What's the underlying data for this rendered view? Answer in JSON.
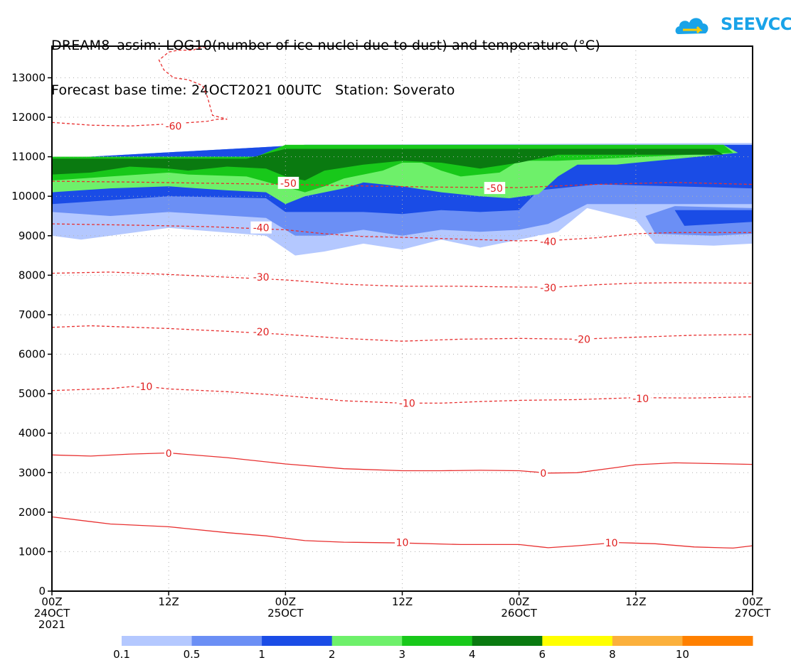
{
  "title": {
    "line1": "DREAM8–assim: LOG10(number of ice nuclei due to dust) and temperature (°C)",
    "line2": "Forecast base time: 24OCT2021 00UTC   Station: Soverato"
  },
  "logo": {
    "text": "SEEVCCC",
    "color": "#1aa3e8"
  },
  "chart_data": {
    "type": "contour",
    "xlabel": "",
    "ylabel": "",
    "xlim_hours": [
      0,
      72
    ],
    "ylim": [
      0,
      13800
    ],
    "yticks": [
      0,
      1000,
      2000,
      3000,
      4000,
      5000,
      6000,
      7000,
      8000,
      9000,
      10000,
      11000,
      12000,
      13000
    ],
    "xticks": [
      {
        "hour": 0,
        "label": "00Z",
        "sub": "24OCT",
        "sub2": "2021"
      },
      {
        "hour": 12,
        "label": "12Z",
        "sub": "",
        "sub2": ""
      },
      {
        "hour": 24,
        "label": "00Z",
        "sub": "25OCT",
        "sub2": ""
      },
      {
        "hour": 36,
        "label": "12Z",
        "sub": "",
        "sub2": ""
      },
      {
        "hour": 48,
        "label": "00Z",
        "sub": "26OCT",
        "sub2": ""
      },
      {
        "hour": 60,
        "label": "12Z",
        "sub": "",
        "sub2": ""
      },
      {
        "hour": 72,
        "label": "00Z",
        "sub": "27OCT",
        "sub2": ""
      }
    ],
    "grid": true,
    "colorbar": {
      "levels": [
        "0.1",
        "0.5",
        "1",
        "2",
        "3",
        "4",
        "6",
        "8",
        "10"
      ],
      "colors": [
        "#b4c8ff",
        "#6b8ff5",
        "#1a4ce6",
        "#6ef06a",
        "#18c81a",
        "#0a7a10",
        "#ffff00",
        "#fbb03c",
        "#ff8000"
      ]
    },
    "fill_bands": [
      {
        "level": "0.1",
        "color": "#b4c8ff",
        "points": [
          [
            0,
            10950
          ],
          [
            26,
            11300
          ],
          [
            72,
            11350
          ],
          [
            72,
            8800
          ],
          [
            68,
            8750
          ],
          [
            62,
            8800
          ],
          [
            60,
            9400
          ],
          [
            55,
            9700
          ],
          [
            52,
            9100
          ],
          [
            48,
            8900
          ],
          [
            44,
            8700
          ],
          [
            40,
            8900
          ],
          [
            36,
            8650
          ],
          [
            32,
            8800
          ],
          [
            28,
            8600
          ],
          [
            25,
            8500
          ],
          [
            22,
            9000
          ],
          [
            12,
            9200
          ],
          [
            6,
            9000
          ],
          [
            3,
            8900
          ],
          [
            0,
            9000
          ]
        ]
      },
      {
        "level": "0.5",
        "color": "#6b8ff5",
        "points": [
          [
            0,
            10950
          ],
          [
            26,
            11300
          ],
          [
            72,
            11300
          ],
          [
            72,
            9050
          ],
          [
            68,
            9000
          ],
          [
            62,
            9050
          ],
          [
            61,
            9500
          ],
          [
            64,
            9750
          ],
          [
            72,
            9700
          ],
          [
            72,
            9800
          ],
          [
            55,
            9800
          ],
          [
            51,
            9300
          ],
          [
            48,
            9150
          ],
          [
            44,
            9100
          ],
          [
            40,
            9150
          ],
          [
            36,
            9000
          ],
          [
            32,
            9150
          ],
          [
            28,
            9000
          ],
          [
            25,
            9000
          ],
          [
            22,
            9450
          ],
          [
            12,
            9600
          ],
          [
            6,
            9500
          ],
          [
            0,
            9600
          ]
        ]
      },
      {
        "level": "1",
        "color": "#1a4ce6",
        "points": [
          [
            0,
            10950
          ],
          [
            26,
            11300
          ],
          [
            72,
            11300
          ],
          [
            72,
            10200
          ],
          [
            56,
            10300
          ],
          [
            50,
            10150
          ],
          [
            48,
            9650
          ],
          [
            44,
            9600
          ],
          [
            40,
            9650
          ],
          [
            36,
            9550
          ],
          [
            32,
            9600
          ],
          [
            28,
            9600
          ],
          [
            24,
            9600
          ],
          [
            22,
            9950
          ],
          [
            12,
            10000
          ],
          [
            6,
            9900
          ],
          [
            0,
            9800
          ]
        ]
      },
      {
        "level": "1b",
        "color": "#1a4ce6",
        "points": [
          [
            65,
            9250
          ],
          [
            72,
            9350
          ],
          [
            72,
            9650
          ],
          [
            64,
            9650
          ]
        ]
      },
      {
        "level": "2",
        "color": "#6ef06a",
        "points": [
          [
            0,
            11000
          ],
          [
            21,
            11000
          ],
          [
            24,
            11300
          ],
          [
            69,
            11300
          ],
          [
            70.5,
            11100
          ],
          [
            58,
            10800
          ],
          [
            54,
            10800
          ],
          [
            52,
            10500
          ],
          [
            50,
            10050
          ],
          [
            47,
            9950
          ],
          [
            44,
            10000
          ],
          [
            40,
            10100
          ],
          [
            36,
            10250
          ],
          [
            32,
            10350
          ],
          [
            30,
            10200
          ],
          [
            26,
            10000
          ],
          [
            24,
            9800
          ],
          [
            22,
            10100
          ],
          [
            18,
            10150
          ],
          [
            12,
            10250
          ],
          [
            6,
            10200
          ],
          [
            0,
            10100
          ]
        ]
      },
      {
        "level": "3",
        "color": "#18c81a",
        "points": [
          [
            0,
            11000
          ],
          [
            21,
            11000
          ],
          [
            24,
            11300
          ],
          [
            69,
            11300
          ],
          [
            70,
            11100
          ],
          [
            52,
            10900
          ],
          [
            48,
            10900
          ],
          [
            46,
            10600
          ],
          [
            42,
            10500
          ],
          [
            40,
            10650
          ],
          [
            38,
            10850
          ],
          [
            36,
            10850
          ],
          [
            34,
            10650
          ],
          [
            30,
            10450
          ],
          [
            28,
            10250
          ],
          [
            26,
            10100
          ],
          [
            23,
            10300
          ],
          [
            20,
            10500
          ],
          [
            14,
            10550
          ],
          [
            12,
            10600
          ],
          [
            6,
            10500
          ],
          [
            0,
            10400
          ]
        ]
      },
      {
        "level": "4",
        "color": "#0a7a10",
        "points": [
          [
            0,
            10950
          ],
          [
            20,
            10950
          ],
          [
            24,
            11200
          ],
          [
            68,
            11200
          ],
          [
            69,
            11050
          ],
          [
            52,
            11050
          ],
          [
            48,
            10850
          ],
          [
            44,
            10700
          ],
          [
            40,
            10850
          ],
          [
            36,
            10900
          ],
          [
            32,
            10800
          ],
          [
            28,
            10650
          ],
          [
            26,
            10400
          ],
          [
            24,
            10500
          ],
          [
            22,
            10700
          ],
          [
            18,
            10750
          ],
          [
            14,
            10650
          ],
          [
            12,
            10700
          ],
          [
            8,
            10750
          ],
          [
            4,
            10600
          ],
          [
            0,
            10550
          ]
        ]
      }
    ],
    "temperature_contours": [
      {
        "label": "-60",
        "dashed": true,
        "points": [
          [
            0,
            11870
          ],
          [
            4,
            11800
          ],
          [
            8,
            11780
          ],
          [
            12,
            11830
          ],
          [
            15,
            11880
          ],
          [
            16,
            11900
          ],
          [
            17,
            11950
          ],
          [
            18,
            11950
          ],
          [
            16.5,
            12050
          ],
          [
            16,
            12500
          ],
          [
            15.5,
            12800
          ],
          [
            14,
            12950
          ],
          [
            12.5,
            13000
          ],
          [
            11.5,
            13200
          ],
          [
            11,
            13450
          ],
          [
            12,
            13650
          ],
          [
            13,
            13700
          ],
          [
            14.5,
            13700
          ],
          [
            15,
            13750
          ],
          [
            16,
            13800
          ]
        ],
        "label_at": [
          12.5,
          11780
        ]
      },
      {
        "label": "-50",
        "dashed": true,
        "points": [
          [
            0,
            10380
          ],
          [
            8,
            10360
          ],
          [
            16,
            10330
          ],
          [
            24,
            10300
          ],
          [
            32,
            10260
          ],
          [
            40,
            10230
          ],
          [
            48,
            10220
          ],
          [
            56,
            10300
          ],
          [
            64,
            10350
          ],
          [
            72,
            10300
          ]
        ],
        "label_at": [
          24.3,
          10330
        ],
        "label2_at": [
          45.5,
          10200
        ]
      },
      {
        "label": "-40",
        "dashed": true,
        "points": [
          [
            0,
            9300
          ],
          [
            8,
            9270
          ],
          [
            16,
            9230
          ],
          [
            24,
            9150
          ],
          [
            28,
            9050
          ],
          [
            32,
            8980
          ],
          [
            36,
            8960
          ],
          [
            40,
            8930
          ],
          [
            44,
            8900
          ],
          [
            48,
            8870
          ],
          [
            52,
            8890
          ],
          [
            56,
            8950
          ],
          [
            60,
            9050
          ],
          [
            64,
            9080
          ],
          [
            72,
            9080
          ]
        ],
        "label_at": [
          21.5,
          9200
        ],
        "label2_at": [
          51,
          8850
        ]
      },
      {
        "label": "-30",
        "dashed": true,
        "points": [
          [
            0,
            8050
          ],
          [
            6,
            8080
          ],
          [
            12,
            8020
          ],
          [
            18,
            7950
          ],
          [
            24,
            7880
          ],
          [
            30,
            7770
          ],
          [
            36,
            7720
          ],
          [
            42,
            7720
          ],
          [
            48,
            7700
          ],
          [
            52,
            7700
          ],
          [
            56,
            7760
          ],
          [
            60,
            7800
          ],
          [
            64,
            7810
          ],
          [
            72,
            7800
          ]
        ],
        "label_at": [
          21.5,
          7950
        ],
        "label2_at": [
          51,
          7680
        ]
      },
      {
        "label": "-20",
        "dashed": true,
        "points": [
          [
            0,
            6680
          ],
          [
            4,
            6720
          ],
          [
            12,
            6650
          ],
          [
            18,
            6580
          ],
          [
            24,
            6500
          ],
          [
            30,
            6400
          ],
          [
            36,
            6330
          ],
          [
            42,
            6380
          ],
          [
            48,
            6400
          ],
          [
            54,
            6380
          ],
          [
            60,
            6430
          ],
          [
            66,
            6480
          ],
          [
            72,
            6500
          ]
        ],
        "label_at": [
          21.5,
          6570
        ],
        "label2_at": [
          54.5,
          6380
        ]
      },
      {
        "label": "-10",
        "dashed": true,
        "points": [
          [
            0,
            5080
          ],
          [
            6,
            5130
          ],
          [
            9,
            5200
          ],
          [
            12,
            5120
          ],
          [
            18,
            5050
          ],
          [
            24,
            4950
          ],
          [
            30,
            4820
          ],
          [
            36,
            4760
          ],
          [
            40,
            4760
          ],
          [
            44,
            4800
          ],
          [
            48,
            4830
          ],
          [
            54,
            4850
          ],
          [
            60,
            4900
          ],
          [
            66,
            4890
          ],
          [
            72,
            4920
          ]
        ],
        "label_at": [
          9.5,
          5180
        ],
        "label2_at": [
          36.5,
          4760
        ],
        "label3_at": [
          60.5,
          4880
        ]
      },
      {
        "label": "0",
        "dashed": false,
        "points": [
          [
            0,
            3450
          ],
          [
            4,
            3420
          ],
          [
            8,
            3470
          ],
          [
            12,
            3500
          ],
          [
            18,
            3380
          ],
          [
            24,
            3220
          ],
          [
            30,
            3100
          ],
          [
            36,
            3050
          ],
          [
            40,
            3050
          ],
          [
            44,
            3060
          ],
          [
            48,
            3050
          ],
          [
            51,
            2990
          ],
          [
            54,
            3000
          ],
          [
            58,
            3130
          ],
          [
            60,
            3200
          ],
          [
            64,
            3250
          ],
          [
            68,
            3230
          ],
          [
            72,
            3210
          ]
        ],
        "label_at": [
          12,
          3490
        ],
        "label2_at": [
          50.5,
          2990
        ]
      },
      {
        "label": "10",
        "dashed": false,
        "points": [
          [
            0,
            1880
          ],
          [
            6,
            1700
          ],
          [
            12,
            1630
          ],
          [
            18,
            1480
          ],
          [
            22,
            1400
          ],
          [
            26,
            1280
          ],
          [
            30,
            1240
          ],
          [
            36,
            1220
          ],
          [
            42,
            1180
          ],
          [
            48,
            1180
          ],
          [
            51,
            1100
          ],
          [
            54,
            1150
          ],
          [
            58,
            1230
          ],
          [
            62,
            1200
          ],
          [
            66,
            1120
          ],
          [
            70,
            1090
          ],
          [
            72,
            1150
          ]
        ],
        "label_at": [
          36,
          1230
        ],
        "label2_at": [
          57.5,
          1220
        ]
      }
    ]
  }
}
